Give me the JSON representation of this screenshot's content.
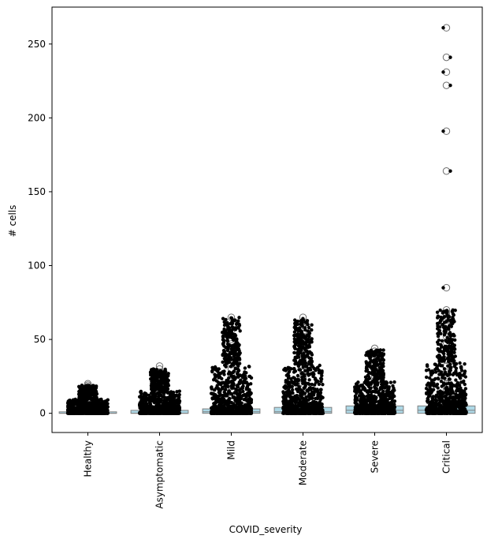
{
  "chart_data": {
    "type": "box",
    "title": "",
    "xlabel": "COVID_severity",
    "ylabel": "# cells",
    "categories": [
      "Healthy",
      "Asymptomatic",
      "Mild",
      "Moderate",
      "Severe",
      "Critical"
    ],
    "ylim": [
      -13,
      275
    ],
    "yticks": [
      0,
      50,
      100,
      150,
      200,
      250
    ],
    "grid": false,
    "legend": "none",
    "box_color": "#add8e6",
    "whisker_color": "#808080",
    "strip_color": "#000000",
    "boxes": [
      {
        "category": "Healthy",
        "q1": 0,
        "median": 0,
        "q3": 1,
        "whisker_low": 0,
        "whisker_high": 2,
        "outliers": [
          3,
          4,
          5,
          6,
          7,
          8,
          9,
          10,
          11,
          12,
          13,
          14,
          15,
          16,
          17,
          18,
          19,
          20
        ],
        "strip_max": 19
      },
      {
        "category": "Asymptomatic",
        "q1": 0,
        "median": 0,
        "q3": 2,
        "whisker_low": 0,
        "whisker_high": 5,
        "outliers": [
          6,
          7,
          8,
          10,
          12,
          14,
          16,
          18,
          20,
          22,
          25,
          28,
          30,
          32
        ],
        "strip_max": 30
      },
      {
        "category": "Mild",
        "q1": 0,
        "median": 1,
        "q3": 3,
        "whisker_low": 0,
        "whisker_high": 7,
        "outliers": [
          8,
          10,
          12,
          15,
          18,
          20,
          23,
          26,
          30,
          33,
          36,
          40,
          44,
          47,
          50,
          56,
          65
        ],
        "strip_max": 65
      },
      {
        "category": "Moderate",
        "q1": 0,
        "median": 1,
        "q3": 4,
        "whisker_low": 0,
        "whisker_high": 10,
        "outliers": [
          11,
          14,
          17,
          20,
          24,
          28,
          32,
          36,
          40,
          44,
          48,
          52,
          55,
          58,
          60,
          62,
          65
        ],
        "strip_max": 65
      },
      {
        "category": "Severe",
        "q1": 0,
        "median": 2,
        "q3": 5,
        "whisker_low": 0,
        "whisker_high": 12,
        "outliers": [
          13,
          16,
          19,
          22,
          25,
          28,
          31,
          34,
          37,
          40,
          42,
          44
        ],
        "strip_max": 43
      },
      {
        "category": "Critical",
        "q1": 0,
        "median": 2,
        "q3": 5,
        "whisker_low": 0,
        "whisker_high": 12,
        "outliers": [
          13,
          16,
          20,
          24,
          28,
          32,
          36,
          40,
          44,
          48,
          52,
          56,
          60,
          63,
          66,
          68,
          70,
          85,
          164,
          191,
          222,
          231,
          241,
          261
        ],
        "strip_max": 70,
        "strip_extra": [
          85,
          164,
          191,
          222,
          231,
          241,
          261
        ]
      }
    ]
  }
}
